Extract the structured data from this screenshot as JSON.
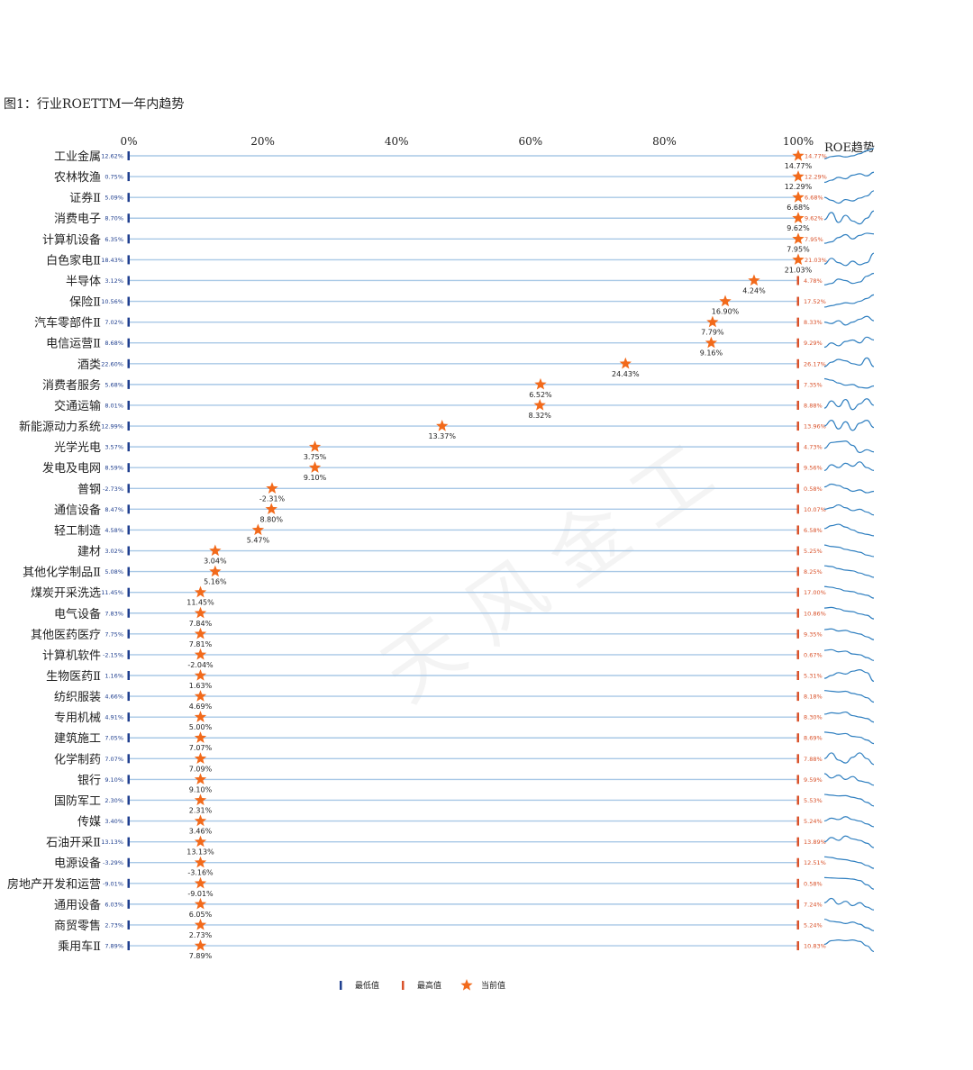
{
  "figure_title": "图1：行业ROETTM一年内趋势",
  "watermark": "天风金工",
  "colors": {
    "low": "#1f3f8f",
    "high": "#d9532c",
    "star": "#f26a1b",
    "line": "#a8c8e6",
    "trend": "#2f7fc0",
    "text": "#222222"
  },
  "chart_data": {
    "type": "dot-range",
    "title": "",
    "x_axis": {
      "ticks": [
        "0%",
        "20%",
        "40%",
        "60%",
        "80%",
        "100%"
      ],
      "range": [
        0,
        100
      ]
    },
    "trend_header": "ROE趋势",
    "legend": [
      {
        "label": "最低值",
        "marker": "low-bar"
      },
      {
        "label": "最高值",
        "marker": "high-bar"
      },
      {
        "label": "当前值",
        "marker": "star"
      }
    ],
    "industries": [
      {
        "name": "工业金属",
        "min": "12.62%",
        "max": "14.77%",
        "current": "14.77%",
        "pct": 100,
        "trend": [
          0.3,
          0.45,
          0.5,
          0.42,
          0.5,
          0.65,
          0.85,
          1.0
        ]
      },
      {
        "name": "农林牧渔",
        "min": "0.75%",
        "max": "12.29%",
        "current": "12.29%",
        "pct": 100,
        "trend": [
          0.1,
          0.25,
          0.45,
          0.35,
          0.6,
          0.7,
          0.55,
          0.8
        ]
      },
      {
        "name": "证券Ⅱ",
        "min": "5.09%",
        "max": "6.68%",
        "current": "6.68%",
        "pct": 100,
        "trend": [
          0.5,
          0.3,
          0.1,
          0.35,
          0.25,
          0.45,
          0.6,
          0.95
        ]
      },
      {
        "name": "消费电子",
        "min": "8.70%",
        "max": "9.62%",
        "current": "9.62%",
        "pct": 100,
        "trend": [
          0.4,
          0.9,
          0.2,
          0.7,
          0.3,
          0.1,
          0.5,
          1.0
        ]
      },
      {
        "name": "计算机设备",
        "min": "6.35%",
        "max": "7.95%",
        "current": "7.95%",
        "pct": 100,
        "trend": [
          0.2,
          0.3,
          0.6,
          0.8,
          0.5,
          0.75,
          0.9,
          0.85
        ]
      },
      {
        "name": "白色家电Ⅱ",
        "min": "18.43%",
        "max": "21.03%",
        "current": "21.03%",
        "pct": 100,
        "trend": [
          0.2,
          0.6,
          0.3,
          0.1,
          0.4,
          0.15,
          0.3,
          0.95
        ]
      },
      {
        "name": "半导体",
        "min": "3.12%",
        "max": "4.78%",
        "current": "4.24%",
        "pct": 93.4,
        "trend": [
          0.2,
          0.3,
          0.6,
          0.5,
          0.3,
          0.4,
          0.8,
          1.0
        ]
      },
      {
        "name": "保险Ⅱ",
        "min": "10.56%",
        "max": "17.52%",
        "current": "16.90%",
        "pct": 89.1,
        "trend": [
          0.1,
          0.2,
          0.3,
          0.4,
          0.35,
          0.5,
          0.7,
          0.95
        ]
      },
      {
        "name": "汽车零部件Ⅱ",
        "min": "7.02%",
        "max": "8.33%",
        "current": "7.79%",
        "pct": 87.2,
        "trend": [
          0.5,
          0.4,
          0.6,
          0.3,
          0.5,
          0.7,
          0.9,
          0.6
        ]
      },
      {
        "name": "电信运营Ⅱ",
        "min": "8.68%",
        "max": "9.29%",
        "current": "9.16%",
        "pct": 87.0,
        "trend": [
          0.2,
          0.5,
          0.3,
          0.6,
          0.7,
          0.5,
          0.9,
          0.7
        ]
      },
      {
        "name": "酒类",
        "min": "22.60%",
        "max": "26.17%",
        "current": "24.43%",
        "pct": 74.2,
        "trend": [
          0.3,
          0.6,
          0.8,
          0.7,
          0.5,
          0.4,
          0.9,
          0.3
        ]
      },
      {
        "name": "消费者服务",
        "min": "5.68%",
        "max": "7.35%",
        "current": "6.52%",
        "pct": 61.5,
        "trend": [
          0.9,
          0.8,
          0.6,
          0.45,
          0.5,
          0.3,
          0.25,
          0.4
        ]
      },
      {
        "name": "交通运输",
        "min": "8.01%",
        "max": "8.88%",
        "current": "8.32%",
        "pct": 61.4,
        "trend": [
          0.3,
          0.8,
          0.4,
          0.9,
          0.2,
          0.6,
          0.95,
          0.5
        ]
      },
      {
        "name": "新能源动力系统",
        "min": "12.99%",
        "max": "13.96%",
        "current": "13.37%",
        "pct": 46.8,
        "trend": [
          0.5,
          0.9,
          0.3,
          0.8,
          0.2,
          0.7,
          0.9,
          0.4
        ]
      },
      {
        "name": "光学光电",
        "min": "3.57%",
        "max": "4.73%",
        "current": "3.75%",
        "pct": 27.8,
        "trend": [
          0.4,
          0.8,
          0.85,
          0.9,
          0.6,
          0.1,
          0.3,
          0.15
        ]
      },
      {
        "name": "发电及电网",
        "min": "8.59%",
        "max": "9.56%",
        "current": "9.10%",
        "pct": 27.8,
        "trend": [
          0.3,
          0.7,
          0.5,
          0.8,
          0.6,
          0.9,
          0.5,
          0.3
        ]
      },
      {
        "name": "普钢",
        "min": "-2.73%",
        "max": "0.58%",
        "current": "-2.31%",
        "pct": 21.4,
        "trend": [
          0.6,
          0.8,
          0.7,
          0.5,
          0.3,
          0.4,
          0.2,
          0.3
        ]
      },
      {
        "name": "通信设备",
        "min": "8.47%",
        "max": "10.07%",
        "current": "8.80%",
        "pct": 21.3,
        "trend": [
          0.5,
          0.6,
          0.8,
          0.6,
          0.4,
          0.5,
          0.3,
          0.1
        ]
      },
      {
        "name": "轻工制造",
        "min": "4.58%",
        "max": "6.58%",
        "current": "5.47%",
        "pct": 19.3,
        "trend": [
          0.6,
          0.8,
          0.9,
          0.7,
          0.5,
          0.3,
          0.2,
          0.1
        ]
      },
      {
        "name": "建材",
        "min": "3.02%",
        "max": "5.25%",
        "current": "3.04%",
        "pct": 12.9,
        "trend": [
          0.9,
          0.8,
          0.75,
          0.6,
          0.5,
          0.4,
          0.2,
          0.1
        ]
      },
      {
        "name": "其他化学制品Ⅱ",
        "min": "5.08%",
        "max": "8.25%",
        "current": "5.16%",
        "pct": 12.9,
        "trend": [
          0.9,
          0.85,
          0.7,
          0.6,
          0.55,
          0.4,
          0.25,
          0.1
        ]
      },
      {
        "name": "煤炭开采洗选",
        "min": "11.45%",
        "max": "17.00%",
        "current": "11.45%",
        "pct": 10.7,
        "trend": [
          0.9,
          0.85,
          0.75,
          0.6,
          0.55,
          0.4,
          0.3,
          0.1
        ]
      },
      {
        "name": "电气设备",
        "min": "7.83%",
        "max": "10.86%",
        "current": "7.84%",
        "pct": 10.7,
        "trend": [
          0.85,
          0.9,
          0.8,
          0.65,
          0.6,
          0.45,
          0.35,
          0.1
        ]
      },
      {
        "name": "其他医药医疗",
        "min": "7.75%",
        "max": "9.35%",
        "current": "7.81%",
        "pct": 10.7,
        "trend": [
          0.8,
          0.85,
          0.7,
          0.75,
          0.6,
          0.5,
          0.3,
          0.1
        ]
      },
      {
        "name": "计算机软件",
        "min": "-2.15%",
        "max": "0.67%",
        "current": "-2.04%",
        "pct": 10.7,
        "trend": [
          0.8,
          0.85,
          0.7,
          0.75,
          0.55,
          0.5,
          0.3,
          0.1
        ]
      },
      {
        "name": "生物医药Ⅱ",
        "min": "1.16%",
        "max": "5.31%",
        "current": "1.63%",
        "pct": 10.7,
        "trend": [
          0.3,
          0.5,
          0.7,
          0.6,
          0.8,
          0.9,
          0.7,
          0.1
        ]
      },
      {
        "name": "纺织服装",
        "min": "4.66%",
        "max": "8.18%",
        "current": "4.69%",
        "pct": 10.7,
        "trend": [
          0.9,
          0.85,
          0.8,
          0.85,
          0.7,
          0.6,
          0.4,
          0.1
        ]
      },
      {
        "name": "专用机械",
        "min": "4.91%",
        "max": "8.30%",
        "current": "5.00%",
        "pct": 10.7,
        "trend": [
          0.7,
          0.8,
          0.75,
          0.85,
          0.6,
          0.5,
          0.4,
          0.15
        ]
      },
      {
        "name": "建筑施工",
        "min": "7.05%",
        "max": "8.69%",
        "current": "7.07%",
        "pct": 10.7,
        "trend": [
          0.9,
          0.85,
          0.75,
          0.8,
          0.6,
          0.55,
          0.35,
          0.1
        ]
      },
      {
        "name": "化学制药",
        "min": "7.07%",
        "max": "7.88%",
        "current": "7.09%",
        "pct": 10.7,
        "trend": [
          0.5,
          0.9,
          0.4,
          0.2,
          0.6,
          0.9,
          0.5,
          0.1
        ]
      },
      {
        "name": "银行",
        "min": "9.10%",
        "max": "9.59%",
        "current": "9.10%",
        "pct": 10.7,
        "trend": [
          0.9,
          0.6,
          0.8,
          0.5,
          0.7,
          0.4,
          0.3,
          0.1
        ]
      },
      {
        "name": "国防军工",
        "min": "2.30%",
        "max": "5.53%",
        "current": "2.31%",
        "pct": 10.7,
        "trend": [
          0.9,
          0.85,
          0.8,
          0.82,
          0.7,
          0.6,
          0.35,
          0.1
        ]
      },
      {
        "name": "传媒",
        "min": "3.40%",
        "max": "5.24%",
        "current": "3.46%",
        "pct": 10.7,
        "trend": [
          0.5,
          0.7,
          0.6,
          0.8,
          0.6,
          0.5,
          0.3,
          0.1
        ]
      },
      {
        "name": "石油开采Ⅱ",
        "min": "13.13%",
        "max": "13.89%",
        "current": "13.13%",
        "pct": 10.7,
        "trend": [
          0.5,
          0.8,
          0.6,
          0.9,
          0.7,
          0.6,
          0.4,
          0.1
        ]
      },
      {
        "name": "电源设备",
        "min": "-3.29%",
        "max": "12.51%",
        "current": "-3.16%",
        "pct": 10.7,
        "trend": [
          0.9,
          0.85,
          0.75,
          0.7,
          0.6,
          0.5,
          0.3,
          0.1
        ]
      },
      {
        "name": "房地产开发和运营",
        "min": "-9.01%",
        "max": "0.58%",
        "current": "-9.01%",
        "pct": 10.7,
        "trend": [
          0.9,
          0.88,
          0.85,
          0.84,
          0.8,
          0.7,
          0.4,
          0.1
        ]
      },
      {
        "name": "通用设备",
        "min": "6.03%",
        "max": "7.24%",
        "current": "6.05%",
        "pct": 10.7,
        "trend": [
          0.6,
          0.9,
          0.5,
          0.7,
          0.4,
          0.6,
          0.3,
          0.1
        ]
      },
      {
        "name": "商贸零售",
        "min": "2.73%",
        "max": "5.24%",
        "current": "2.73%",
        "pct": 10.7,
        "trend": [
          0.9,
          0.75,
          0.7,
          0.6,
          0.7,
          0.55,
          0.3,
          0.1
        ]
      },
      {
        "name": "乘用车Ⅱ",
        "min": "7.89%",
        "max": "10.83%",
        "current": "7.89%",
        "pct": 10.7,
        "trend": [
          0.6,
          0.85,
          0.9,
          0.85,
          0.9,
          0.8,
          0.5,
          0.1
        ]
      }
    ]
  }
}
